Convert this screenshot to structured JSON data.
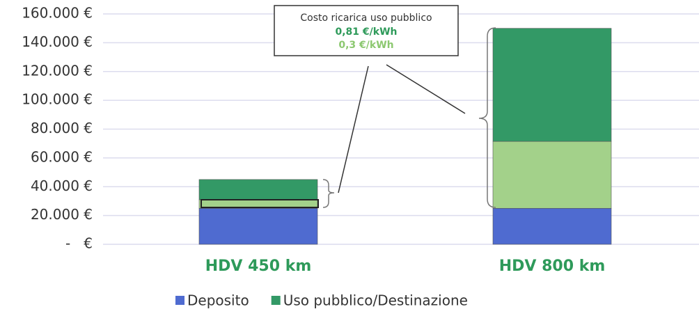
{
  "chart_data": {
    "type": "stacked_bar",
    "categories": [
      "HDV 450 km",
      "HDV 800 km"
    ],
    "series": [
      {
        "name": "Deposito",
        "color": "#4f6bd0",
        "values": [
          25000,
          25000
        ]
      },
      {
        "color": "#a3d18a",
        "values": [
          6000,
          46500
        ]
      },
      {
        "name": "Uso pubblico/Destinazione",
        "color": "#339966",
        "values": [
          14000,
          78500
        ]
      }
    ],
    "ylim": [
      0,
      160000
    ],
    "yticks": [
      {
        "value": 0,
        "label": "-   €"
      },
      {
        "value": 20000,
        "label": "20.000 €"
      },
      {
        "value": 40000,
        "label": "40.000 €"
      },
      {
        "value": 60000,
        "label": "60.000 €"
      },
      {
        "value": 80000,
        "label": "80.000 €"
      },
      {
        "value": 100000,
        "label": "100.000 €"
      },
      {
        "value": 120000,
        "label": "120.000 €"
      },
      {
        "value": 140000,
        "label": "140.000 €"
      },
      {
        "value": 160000,
        "label": "160.000 €"
      }
    ],
    "grid": true,
    "legend": "bottom",
    "annotation": {
      "title": "Costo ricarica uso pubblico",
      "line1": "0,81 €/kWh",
      "line2": "0,3 €/kWh"
    }
  }
}
